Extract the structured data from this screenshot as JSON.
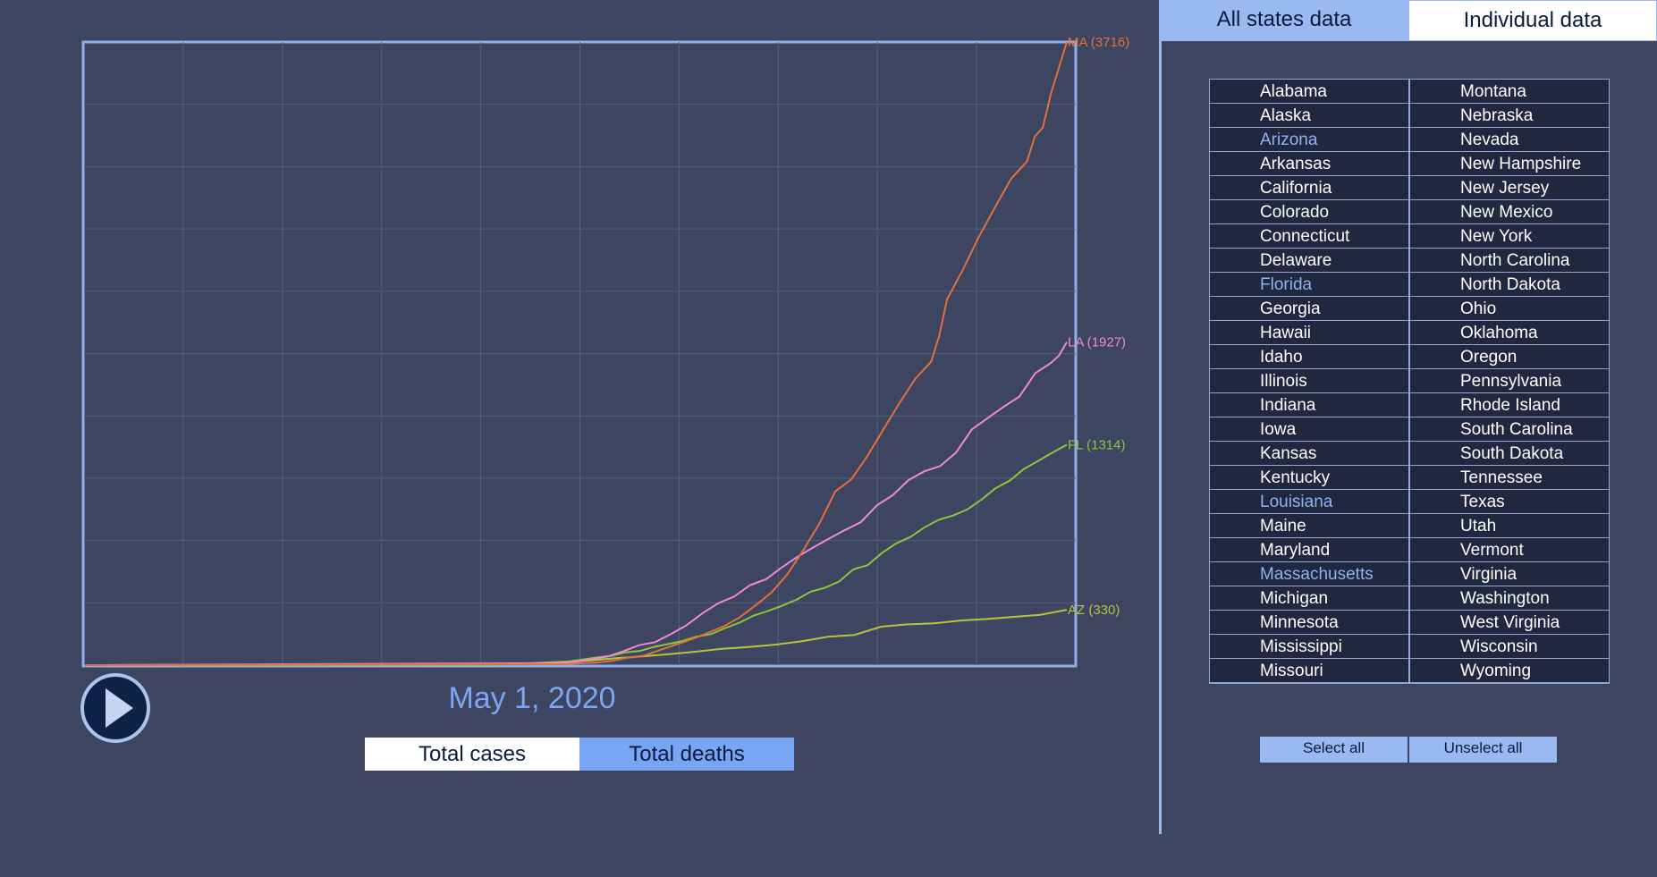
{
  "controls": {
    "date": "May 1, 2020",
    "metric_buttons": [
      "Total cases",
      "Total deaths"
    ],
    "active_metric": "Total deaths",
    "play_icon": "play-icon"
  },
  "tabs": [
    "All states data",
    "Individual data"
  ],
  "active_tab": "All states data",
  "states": {
    "left_column": [
      "Alabama",
      "Alaska",
      "Arizona",
      "Arkansas",
      "California",
      "Colorado",
      "Connecticut",
      "Delaware",
      "Florida",
      "Georgia",
      "Hawaii",
      "Idaho",
      "Illinois",
      "Indiana",
      "Iowa",
      "Kansas",
      "Kentucky",
      "Louisiana",
      "Maine",
      "Maryland",
      "Massachusetts",
      "Michigan",
      "Minnesota",
      "Mississippi",
      "Missouri"
    ],
    "right_column": [
      "Montana",
      "Nebraska",
      "Nevada",
      "New Hampshire",
      "New Jersey",
      "New Mexico",
      "New York",
      "North Carolina",
      "North Dakota",
      "Ohio",
      "Oklahoma",
      "Oregon",
      "Pennsylvania",
      "Rhode Island",
      "South Carolina",
      "South Dakota",
      "Tennessee",
      "Texas",
      "Utah",
      "Vermont",
      "Virginia",
      "Washington",
      "West Virginia",
      "Wisconsin",
      "Wyoming"
    ],
    "selected": [
      "Arizona",
      "Florida",
      "Louisiana",
      "Massachusetts"
    ]
  },
  "buttons": {
    "select_all": "Select all",
    "unselect_all": "Unselect all"
  },
  "colors": {
    "background": "#3d4560",
    "accent": "#78a6f4",
    "MA": "#e07040",
    "LA": "#f08ad0",
    "FL": "#8cc63a",
    "AZ": "#b8c23a"
  },
  "chart_data": {
    "type": "line",
    "title": "",
    "xlabel": "",
    "ylabel": "",
    "x_days": 101,
    "ylim": [
      0,
      3716
    ],
    "grid": true,
    "series": [
      {
        "name": "MA",
        "end_label": "MA (3716)",
        "color": "#e07040",
        "values": [
          0,
          0,
          0,
          0,
          0,
          0,
          0,
          0,
          0,
          0,
          0,
          0,
          0,
          0,
          0,
          0,
          0,
          0,
          0,
          0,
          0,
          0,
          0,
          0,
          0,
          0,
          0,
          0,
          0,
          0,
          0,
          0,
          0,
          0,
          0,
          0,
          0,
          0,
          0,
          0,
          0,
          0,
          0,
          0,
          0,
          0,
          0,
          0,
          0,
          0,
          0,
          0,
          0,
          0,
          0,
          0,
          0,
          0,
          0,
          0,
          0,
          0,
          0,
          0,
          0,
          0,
          0,
          0,
          0,
          0,
          0,
          0,
          0,
          0,
          0,
          0,
          0,
          0,
          0,
          0,
          0,
          0,
          0,
          0,
          0,
          0,
          0,
          0,
          0,
          0,
          0,
          0,
          0,
          0,
          0,
          0,
          0,
          0,
          0,
          0,
          3716
        ],
        "points": [
          [
            0,
            0
          ],
          [
            60,
            6
          ],
          [
            62,
            11
          ],
          [
            64,
            15
          ],
          [
            66,
            25
          ],
          [
            68,
            44
          ],
          [
            70,
            56
          ],
          [
            72,
            89
          ],
          [
            74,
            122
          ],
          [
            76,
            154
          ],
          [
            78,
            192
          ],
          [
            80,
            231
          ],
          [
            82,
            284
          ],
          [
            84,
            356
          ],
          [
            86,
            433
          ],
          [
            88,
            542
          ],
          [
            90,
            686
          ],
          [
            92,
            844
          ],
          [
            94,
            1036
          ],
          [
            96,
            1108
          ],
          [
            98,
            1245
          ],
          [
            100,
            1404
          ],
          [
            102,
            1560
          ],
          [
            104,
            1706
          ],
          [
            106,
            1809
          ],
          [
            107,
            1961
          ],
          [
            108,
            2182
          ],
          [
            110,
            2360
          ],
          [
            112,
            2556
          ],
          [
            114,
            2730
          ],
          [
            116,
            2899
          ],
          [
            118,
            3003
          ],
          [
            119,
            3153
          ],
          [
            120,
            3205
          ],
          [
            121,
            3405
          ],
          [
            122,
            3562
          ],
          [
            123,
            3716
          ]
        ]
      },
      {
        "name": "LA",
        "end_label": "LA (1927)",
        "color": "#f08ad0",
        "points": [
          [
            0,
            0
          ],
          [
            60,
            12
          ],
          [
            62,
            20
          ],
          [
            64,
            35
          ],
          [
            66,
            51
          ],
          [
            68,
            83
          ],
          [
            70,
            119
          ],
          [
            72,
            137
          ],
          [
            74,
            185
          ],
          [
            76,
            239
          ],
          [
            78,
            310
          ],
          [
            80,
            370
          ],
          [
            82,
            409
          ],
          [
            84,
            477
          ],
          [
            86,
            512
          ],
          [
            88,
            582
          ],
          [
            90,
            646
          ],
          [
            92,
            702
          ],
          [
            94,
            755
          ],
          [
            96,
            806
          ],
          [
            98,
            853
          ],
          [
            100,
            952
          ],
          [
            102,
            1013
          ],
          [
            104,
            1103
          ],
          [
            106,
            1156
          ],
          [
            108,
            1187
          ],
          [
            110,
            1267
          ],
          [
            112,
            1405
          ],
          [
            114,
            1473
          ],
          [
            116,
            1540
          ],
          [
            118,
            1601
          ],
          [
            119,
            1670
          ],
          [
            120,
            1740
          ],
          [
            122,
            1802
          ],
          [
            123,
            1845
          ],
          [
            124,
            1927
          ]
        ]
      },
      {
        "name": "FL",
        "end_label": "FL (1314)",
        "color": "#8cc63a",
        "points": [
          [
            0,
            0
          ],
          [
            62,
            4
          ],
          [
            64,
            9
          ],
          [
            66,
            13
          ],
          [
            68,
            22
          ],
          [
            70,
            34
          ],
          [
            72,
            46
          ],
          [
            74,
            56
          ],
          [
            76,
            76
          ],
          [
            78,
            85
          ],
          [
            80,
            109
          ],
          [
            82,
            126
          ],
          [
            84,
            144
          ],
          [
            86,
            170
          ],
          [
            88,
            185
          ],
          [
            90,
            221
          ],
          [
            92,
            253
          ],
          [
            94,
            296
          ],
          [
            96,
            323
          ],
          [
            98,
            354
          ],
          [
            100,
            390
          ],
          [
            102,
            438
          ],
          [
            104,
            461
          ],
          [
            106,
            499
          ],
          [
            108,
            571
          ],
          [
            110,
            596
          ],
          [
            112,
            668
          ],
          [
            114,
            725
          ],
          [
            116,
            764
          ],
          [
            118,
            822
          ],
          [
            120,
            867
          ],
          [
            122,
            892
          ],
          [
            124,
            928
          ],
          [
            126,
            987
          ],
          [
            128,
            1055
          ],
          [
            130,
            1101
          ],
          [
            132,
            1171
          ],
          [
            134,
            1218
          ],
          [
            136,
            1268
          ],
          [
            138,
            1314
          ]
        ]
      },
      {
        "name": "AZ",
        "end_label": "AZ (330)",
        "color": "#b8c23a",
        "points": [
          [
            0,
            0
          ],
          [
            60,
            2
          ],
          [
            64,
            6
          ],
          [
            68,
            13
          ],
          [
            72,
            20
          ],
          [
            76,
            27
          ],
          [
            80,
            41
          ],
          [
            84,
            52
          ],
          [
            88,
            65
          ],
          [
            92,
            80
          ],
          [
            96,
            97
          ],
          [
            100,
            108
          ],
          [
            104,
            122
          ],
          [
            108,
            142
          ],
          [
            112,
            169
          ],
          [
            116,
            180
          ],
          [
            120,
            229
          ],
          [
            124,
            243
          ],
          [
            128,
            249
          ],
          [
            132,
            266
          ],
          [
            136,
            275
          ],
          [
            140,
            288
          ],
          [
            144,
            300
          ],
          [
            148,
            330
          ]
        ]
      }
    ]
  }
}
